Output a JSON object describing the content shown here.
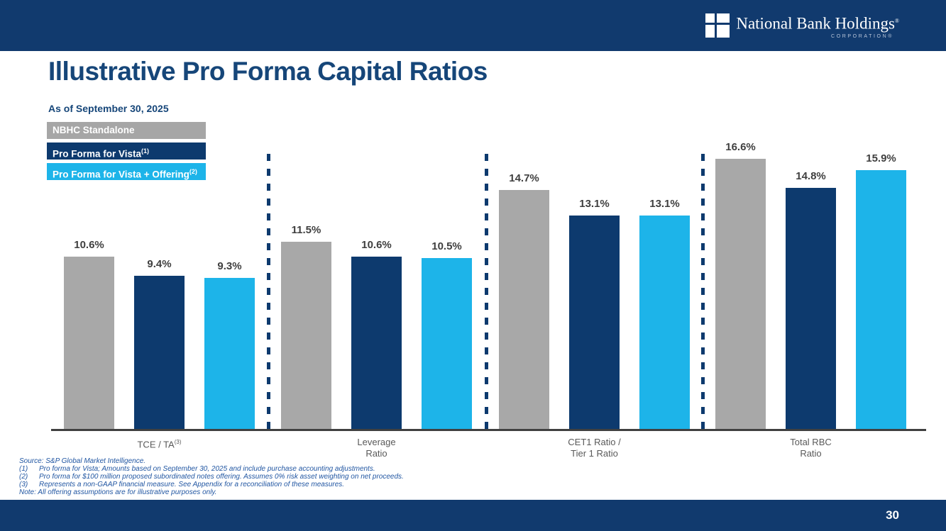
{
  "header": {
    "logo_name": "National Bank Holdings",
    "logo_registered": "®",
    "logo_sub": "CORPORATION®"
  },
  "slide": {
    "title": "Illustrative Pro Forma Capital Ratios",
    "as_of": "As of September 30, 2025",
    "page_number": "30"
  },
  "legend": [
    {
      "label": "NBHC Standalone",
      "sup": "",
      "color": "#a6a6a6"
    },
    {
      "label": "Pro Forma for Vista",
      "sup": "(1)",
      "color": "#0d3a6e"
    },
    {
      "label": "Pro Forma for Vista + Offering",
      "sup": "(2)",
      "color": "#1db4e9"
    }
  ],
  "chart_data": {
    "type": "bar",
    "title": "Illustrative Pro Forma Capital Ratios",
    "subtitle": "As of September 30, 2025",
    "categories": [
      "TCE / TA(3)",
      "Leverage Ratio",
      "CET1 Ratio / Tier 1 Ratio",
      "Total RBC Ratio"
    ],
    "category_lines": [
      [
        "TCE / TA"
      ],
      [
        "Leverage",
        "Ratio"
      ],
      [
        "CET1 Ratio /",
        "Tier 1 Ratio"
      ],
      [
        "Total RBC",
        "Ratio"
      ]
    ],
    "category_sups": [
      "(3)",
      "",
      "",
      ""
    ],
    "series": [
      {
        "name": "NBHC Standalone",
        "color": "#a8a8a8",
        "values": [
          10.6,
          11.5,
          14.7,
          16.6
        ]
      },
      {
        "name": "Pro Forma for Vista",
        "color": "#0d3a6e",
        "values": [
          9.4,
          10.6,
          13.1,
          14.8
        ]
      },
      {
        "name": "Pro Forma for Vista + Offering",
        "color": "#1db4e9",
        "values": [
          9.3,
          10.5,
          13.1,
          15.9
        ]
      }
    ],
    "value_suffix": "%",
    "ylim": [
      0,
      17
    ],
    "grid": false,
    "legend_position": "top-left",
    "group_dividers": "dashed-navy"
  },
  "footnotes": {
    "source": "Source: S&P Global Market Intelligence.",
    "items": [
      {
        "num": "(1)",
        "text": "Pro forma for Vista; Amounts based on September 30, 2025 and include purchase accounting adjustments."
      },
      {
        "num": "(2)",
        "text": "Pro forma for $100 million proposed subordinated notes offering. Assumes 0% risk asset weighting on net proceeds."
      },
      {
        "num": "(3)",
        "text": "Represents a non-GAAP financial measure. See Appendix for a reconciliation of these measures."
      }
    ],
    "note": "Note: All offering assumptions are for illustrative purposes only."
  },
  "colors": {
    "navy_band": "#113a6e",
    "title_navy": "#164679",
    "bar_gray": "#a8a8a8",
    "bar_navy": "#0d3a6e",
    "bar_cyan": "#1db4e9",
    "axis_line": "#404040",
    "value_label": "#3f3f3f",
    "axis_label": "#595959",
    "footnote_blue": "#2156a2"
  }
}
